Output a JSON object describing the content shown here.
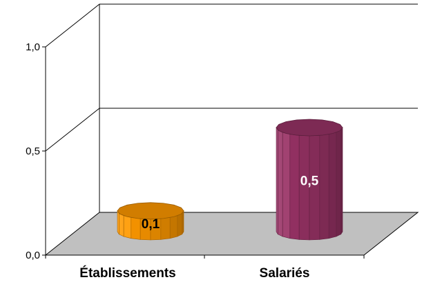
{
  "chart_data": {
    "type": "bar",
    "categories": [
      "Établissements",
      "Salariés"
    ],
    "values": [
      0.1,
      0.5
    ],
    "data_labels": [
      "0,1",
      "0,5"
    ],
    "ytick_labels": [
      "0,0",
      "0,5",
      "1,0"
    ],
    "yticks": [
      0,
      0.5,
      1.0
    ],
    "ylim": [
      0,
      1.0
    ],
    "grid": true,
    "legend": "none",
    "bar_shape": "cylinder",
    "colors": {
      "bars": [
        "#ff9900",
        "#993366"
      ],
      "bar_labels": [
        "#000000",
        "#ffffff"
      ],
      "floor": "#c0c0c0",
      "lines": "#000000"
    }
  }
}
